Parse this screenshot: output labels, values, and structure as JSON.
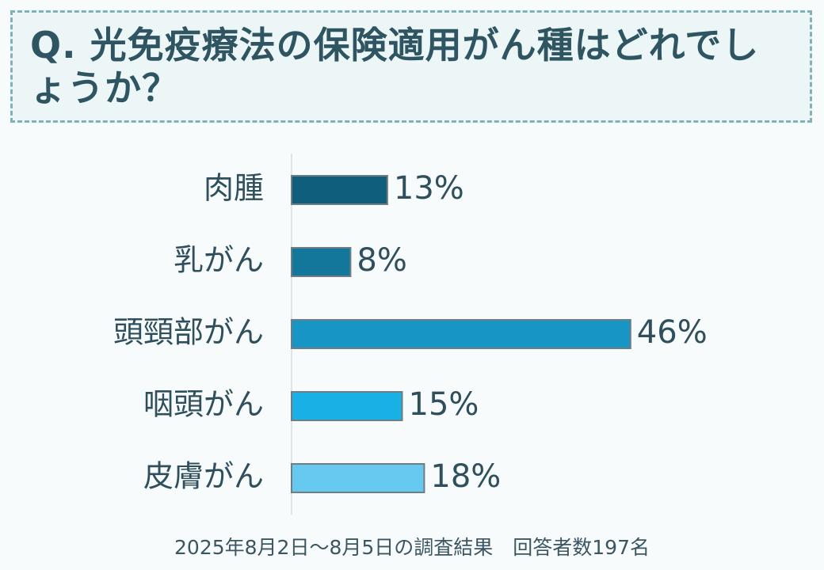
{
  "question": "Q. 光免疫療法の保険適用がん種はどれでしょうか？",
  "footer": {
    "survey_note": "2025年8月2日～8月5日の調査結果　回答者数197名"
  },
  "colors": {
    "bar1": "#0f5f7c",
    "bar2": "#12779b",
    "bar3": "#1795c4",
    "bar4": "#19b0e6",
    "bar5": "#67c9ef",
    "bar_outline": "#6f7d84",
    "axis": "#d8dcde",
    "text": "#2f4f5c"
  },
  "chart_data": {
    "type": "bar",
    "orientation": "horizontal",
    "categories": [
      "肉腫",
      "乳がん",
      "頭頸部がん",
      "咽頭がん",
      "皮膚がん"
    ],
    "values": [
      13,
      8,
      46,
      15,
      18
    ],
    "value_labels": [
      "13%",
      "8%",
      "46%",
      "15%",
      "18%"
    ],
    "unit": "%",
    "xlim": [
      0,
      100
    ],
    "grid": false,
    "legend": "none"
  }
}
